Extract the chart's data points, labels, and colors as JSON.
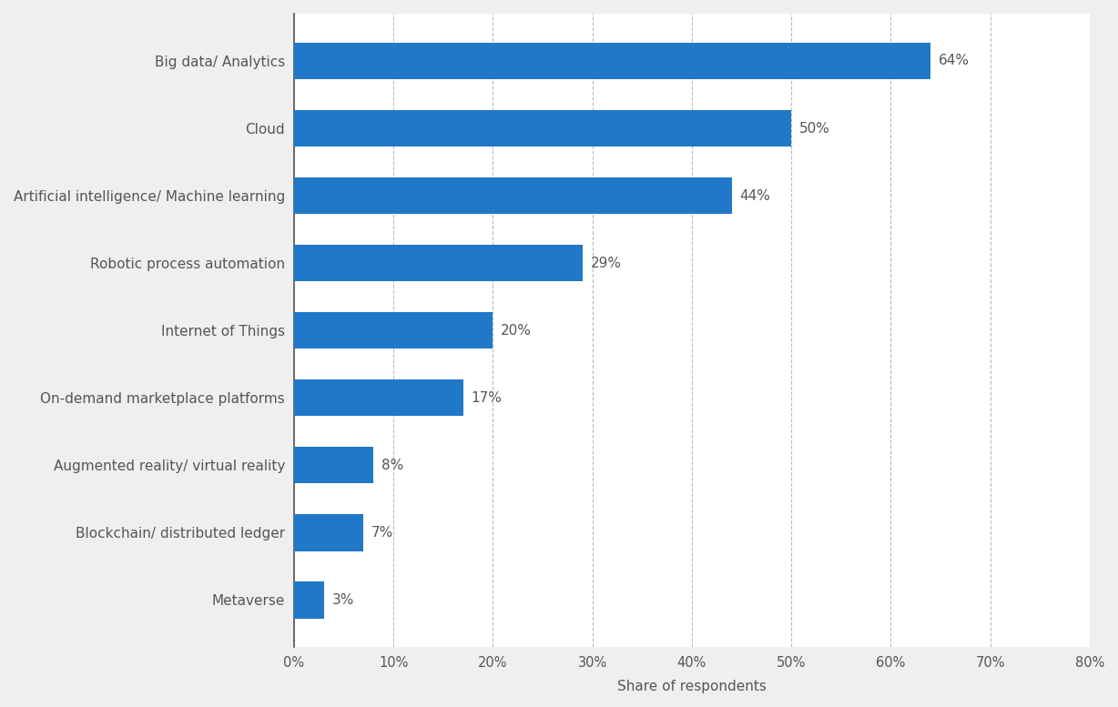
{
  "categories": [
    "Big data/ Analytics",
    "Cloud",
    "Artificial intelligence/ Machine learning",
    "Robotic process automation",
    "Internet of Things",
    "On-demand marketplace platforms",
    "Augmented reality/ virtual reality",
    "Blockchain/ distributed ledger",
    "Metaverse"
  ],
  "values": [
    64,
    50,
    44,
    29,
    20,
    17,
    8,
    7,
    3
  ],
  "labels": [
    "64%",
    "50%",
    "44%",
    "29%",
    "20%",
    "17%",
    "8%",
    "7%",
    "3%"
  ],
  "bar_color": "#2078c8",
  "background_color": "#efefef",
  "plot_background_color": "#ffffff",
  "xlabel": "Share of respondents",
  "xlim": [
    0,
    80
  ],
  "xticks": [
    0,
    10,
    20,
    30,
    40,
    50,
    60,
    70,
    80
  ],
  "xtick_labels": [
    "0%",
    "10%",
    "20%",
    "30%",
    "40%",
    "50%",
    "60%",
    "70%",
    "80%"
  ],
  "grid_color": "#bbbbbb",
  "label_fontsize": 11,
  "tick_fontsize": 10.5,
  "xlabel_fontsize": 11,
  "bar_height": 0.55,
  "label_color": "#555555",
  "value_label_fontsize": 11
}
